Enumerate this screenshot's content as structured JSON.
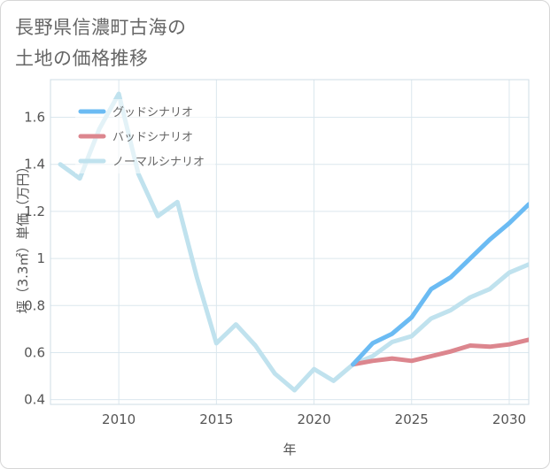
{
  "title": {
    "line1": "長野県信濃町古海の",
    "line2": "土地の価格推移"
  },
  "chart_data": {
    "type": "line",
    "xlabel": "年",
    "ylabel": "坪（3.3㎡）単価（万円）",
    "xlim": [
      2006.5,
      2031
    ],
    "ylim": [
      0.38,
      1.76
    ],
    "x_ticks": [
      2010,
      2015,
      2020,
      2025,
      2030
    ],
    "y_ticks": [
      0.4,
      0.6,
      0.8,
      1,
      1.2,
      1.4,
      1.6
    ],
    "grid": true,
    "legend_position": "top-left",
    "series": [
      {
        "name": "グッドシナリオ",
        "color": "#6bbbf3",
        "x": [
          2022,
          2023,
          2024,
          2025,
          2026,
          2027,
          2028,
          2029,
          2030,
          2031
        ],
        "values": [
          0.55,
          0.64,
          0.68,
          0.75,
          0.87,
          0.92,
          1.0,
          1.08,
          1.15,
          1.23
        ]
      },
      {
        "name": "バッドシナリオ",
        "color": "#dc868e",
        "x": [
          2022,
          2023,
          2024,
          2025,
          2026,
          2027,
          2028,
          2029,
          2030,
          2031
        ],
        "values": [
          0.55,
          0.565,
          0.575,
          0.565,
          0.585,
          0.605,
          0.63,
          0.625,
          0.635,
          0.655
        ]
      },
      {
        "name": "ノーマルシナリオ",
        "color": "#c0e2ee",
        "x": [
          2007,
          2008,
          2009,
          2010,
          2011,
          2012,
          2013,
          2014,
          2015,
          2016,
          2017,
          2018,
          2019,
          2020,
          2021,
          2022,
          2023,
          2024,
          2025,
          2026,
          2027,
          2028,
          2029,
          2030,
          2031
        ],
        "values": [
          1.4,
          1.34,
          1.55,
          1.7,
          1.36,
          1.18,
          1.24,
          0.92,
          0.64,
          0.72,
          0.63,
          0.51,
          0.44,
          0.53,
          0.48,
          0.55,
          0.585,
          0.645,
          0.67,
          0.745,
          0.78,
          0.835,
          0.87,
          0.94,
          0.975
        ]
      }
    ]
  }
}
